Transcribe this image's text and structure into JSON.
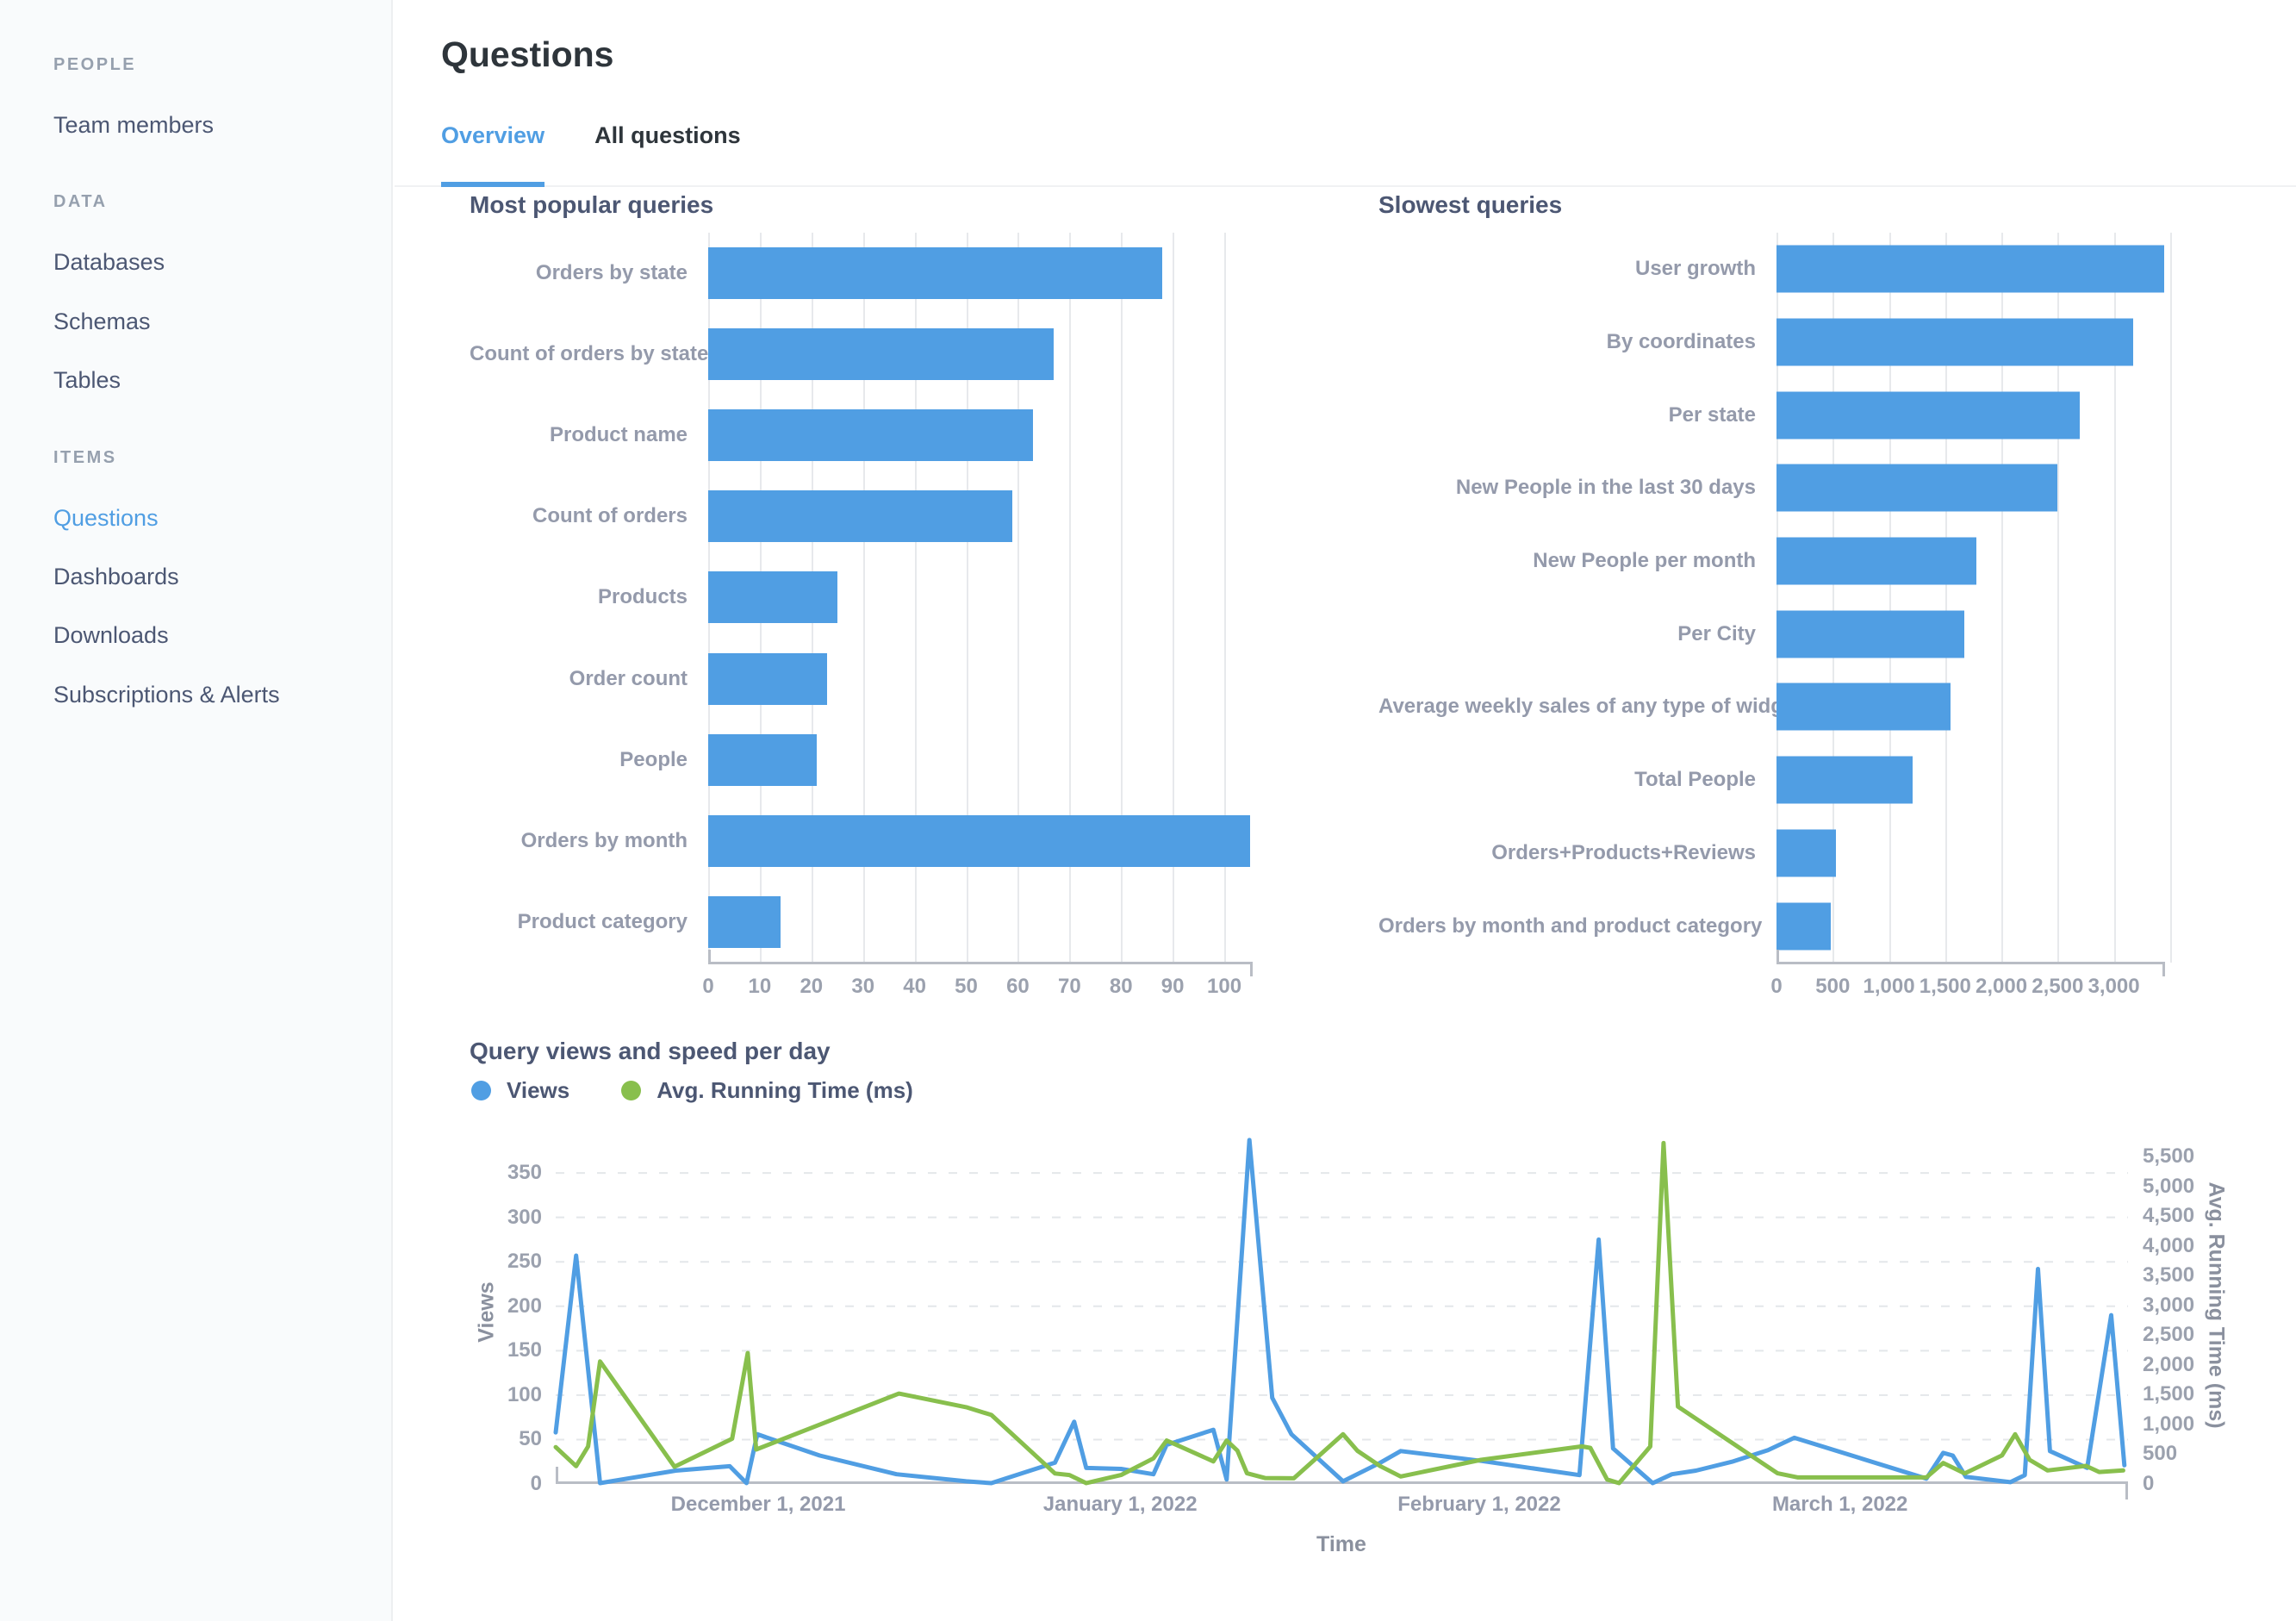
{
  "header": {
    "title": "Questions",
    "tabs": [
      {
        "label": "Overview",
        "active": true
      },
      {
        "label": "All questions",
        "active": false
      }
    ]
  },
  "sidebar": {
    "sections": [
      {
        "heading": "PEOPLE",
        "items": [
          {
            "label": "Team members",
            "active": false
          }
        ]
      },
      {
        "heading": "DATA",
        "items": [
          {
            "label": "Databases",
            "active": false
          },
          {
            "label": "Schemas",
            "active": false
          },
          {
            "label": "Tables",
            "active": false
          }
        ]
      },
      {
        "heading": "ITEMS",
        "items": [
          {
            "label": "Questions",
            "active": true
          },
          {
            "label": "Dashboards",
            "active": false
          },
          {
            "label": "Downloads",
            "active": false
          },
          {
            "label": "Subscriptions & Alerts",
            "active": false
          }
        ]
      }
    ]
  },
  "colors": {
    "accent": "#509EE3",
    "green": "#88BF4D",
    "text_dark": "#2E353B",
    "text_slate": "#4C5773",
    "text_gray": "#949AAB"
  },
  "chart_data": [
    {
      "type": "bar",
      "orientation": "horizontal",
      "title": "Most popular queries",
      "categories": [
        "Orders by state",
        "Count of orders by state",
        "Product name",
        "Count of orders",
        "Products",
        "Order count",
        "People",
        "Orders by month",
        "Product category"
      ],
      "values": [
        88,
        67,
        63,
        59,
        25,
        23,
        21,
        105,
        14
      ],
      "xlim": [
        0,
        105.5
      ],
      "grid": true,
      "ticks": [
        {
          "v": 0,
          "label": "0"
        },
        {
          "v": 10,
          "label": "10"
        },
        {
          "v": 20,
          "label": "20"
        },
        {
          "v": 30,
          "label": "30"
        },
        {
          "v": 40,
          "label": "40"
        },
        {
          "v": 50,
          "label": "50"
        },
        {
          "v": 60,
          "label": "60"
        },
        {
          "v": 70,
          "label": "70"
        },
        {
          "v": 80,
          "label": "80"
        },
        {
          "v": 90,
          "label": "90"
        },
        {
          "v": 100,
          "label": "100"
        }
      ]
    },
    {
      "type": "bar",
      "orientation": "horizontal",
      "title": "Slowest queries",
      "categories": [
        "User growth",
        "By coordinates",
        "Per state",
        "New People in the last 30 days",
        "New People per month",
        "Per City",
        "Average weekly sales of any type of widget",
        "Total People",
        "Orders+Products+Reviews",
        "Orders by month and product category"
      ],
      "values": [
        3450,
        3170,
        2700,
        2500,
        1780,
        1670,
        1550,
        1210,
        530,
        480
      ],
      "xlim": [
        0,
        3455
      ],
      "grid": true,
      "ticks": [
        {
          "v": 0,
          "label": "0"
        },
        {
          "v": 500,
          "label": "500"
        },
        {
          "v": 1000,
          "label": "1,000"
        },
        {
          "v": 1500,
          "label": "1,500"
        },
        {
          "v": 2000,
          "label": "2,000"
        },
        {
          "v": 2500,
          "label": "2,500"
        },
        {
          "v": 3000,
          "label": "3,000"
        },
        {
          "v": 3500,
          "label": ""
        }
      ]
    },
    {
      "type": "line",
      "title": "Query views and speed per day",
      "xlabel": "Time",
      "x_range_days": 131,
      "x_start": "November 14, 2021",
      "legend_position": "top-left",
      "grid": "dashed-horizontal",
      "left_axis": {
        "label": "Views",
        "max": 385,
        "ticks": [
          {
            "v": 0,
            "label": "0"
          },
          {
            "v": 50,
            "label": "50"
          },
          {
            "v": 100,
            "label": "100"
          },
          {
            "v": 150,
            "label": "150"
          },
          {
            "v": 200,
            "label": "200"
          },
          {
            "v": 250,
            "label": "250"
          },
          {
            "v": 300,
            "label": "300"
          },
          {
            "v": 350,
            "label": "350"
          }
        ]
      },
      "right_axis": {
        "label": "Avg. Running Time (ms)",
        "max": 5750,
        "ticks": [
          {
            "v": 0,
            "label": "0"
          },
          {
            "v": 500,
            "label": "500"
          },
          {
            "v": 1000,
            "label": "1,000"
          },
          {
            "v": 1500,
            "label": "1,500"
          },
          {
            "v": 2000,
            "label": "2,000"
          },
          {
            "v": 2500,
            "label": "2,500"
          },
          {
            "v": 3000,
            "label": "3,000"
          },
          {
            "v": 3500,
            "label": "3,500"
          },
          {
            "v": 4000,
            "label": "4,000"
          },
          {
            "v": 4500,
            "label": "4,500"
          },
          {
            "v": 5000,
            "label": "5,000"
          },
          {
            "v": 5500,
            "label": "5,500"
          }
        ]
      },
      "x_ticks": [
        {
          "pos": 0.1288,
          "label": "December 1, 2021"
        },
        {
          "pos": 0.359,
          "label": "January 1, 2022"
        },
        {
          "pos": 0.5874,
          "label": "February 1, 2022"
        },
        {
          "pos": 0.8168,
          "label": "March 1, 2022"
        }
      ],
      "series": [
        {
          "name": "Views",
          "axis": "left",
          "color": "#509EE3",
          "points": [
            [
              0,
              58
            ],
            [
              1.7,
              257
            ],
            [
              3.7,
              1
            ],
            [
              10,
              15
            ],
            [
              14.5,
              20
            ],
            [
              15.9,
              1
            ],
            [
              16.8,
              56
            ],
            [
              22,
              32
            ],
            [
              28.4,
              11
            ],
            [
              34.2,
              3
            ],
            [
              36.3,
              1
            ],
            [
              41.6,
              24
            ],
            [
              43.2,
              70
            ],
            [
              44.2,
              18
            ],
            [
              47.1,
              17
            ],
            [
              49.8,
              11
            ],
            [
              50.9,
              44
            ],
            [
              54.8,
              61
            ],
            [
              55.9,
              5
            ],
            [
              57.8,
              387
            ],
            [
              59.7,
              97
            ],
            [
              61.3,
              56
            ],
            [
              65.6,
              3
            ],
            [
              68.7,
              24
            ],
            [
              70.4,
              37
            ],
            [
              77.1,
              26
            ],
            [
              85.3,
              10
            ],
            [
              86.9,
              275
            ],
            [
              88.1,
              40
            ],
            [
              91.4,
              1
            ],
            [
              93,
              11
            ],
            [
              95,
              15
            ],
            [
              98,
              25
            ],
            [
              101,
              38
            ],
            [
              103.2,
              52
            ],
            [
              114.2,
              6
            ],
            [
              115.6,
              35
            ],
            [
              116.4,
              32
            ],
            [
              117.5,
              8
            ],
            [
              121.2,
              2
            ],
            [
              122.4,
              10
            ],
            [
              123.5,
              242
            ],
            [
              124.5,
              37
            ],
            [
              127.6,
              18
            ],
            [
              129.6,
              190
            ],
            [
              130.7,
              21
            ]
          ]
        },
        {
          "name": "Avg. Running Time (ms)",
          "axis": "right",
          "color": "#88BF4D",
          "points": [
            [
              0,
              620
            ],
            [
              1.7,
              300
            ],
            [
              2.7,
              630
            ],
            [
              3.7,
              2060
            ],
            [
              9.9,
              290
            ],
            [
              14.7,
              760
            ],
            [
              16,
              2200
            ],
            [
              16.7,
              580
            ],
            [
              28.6,
              1520
            ],
            [
              34.2,
              1290
            ],
            [
              36.3,
              1160
            ],
            [
              41.6,
              177
            ],
            [
              42.8,
              150
            ],
            [
              44.2,
              15
            ],
            [
              47.1,
              150
            ],
            [
              49.8,
              430
            ],
            [
              50.9,
              730
            ],
            [
              51.7,
              660
            ],
            [
              54.8,
              380
            ],
            [
              55.9,
              730
            ],
            [
              56.8,
              560
            ],
            [
              57.6,
              180
            ],
            [
              59.1,
              100
            ],
            [
              61.5,
              95
            ],
            [
              65.6,
              835
            ],
            [
              66.8,
              557
            ],
            [
              68.7,
              300
            ],
            [
              70.4,
              126
            ],
            [
              77.1,
              405
            ],
            [
              85.5,
              632
            ],
            [
              86.2,
              607
            ],
            [
              87.6,
              76
            ],
            [
              88.6,
              15
            ],
            [
              91.2,
              630
            ],
            [
              92.3,
              5730
            ],
            [
              93.5,
              1300
            ],
            [
              101.8,
              180
            ],
            [
              103.5,
              110
            ],
            [
              114.2,
              110
            ],
            [
              115.6,
              354
            ],
            [
              117.4,
              177
            ],
            [
              120.5,
              480
            ],
            [
              121.6,
              835
            ],
            [
              122.8,
              405
            ],
            [
              124.3,
              228
            ],
            [
              127.5,
              304
            ],
            [
              128.6,
              202
            ],
            [
              130.6,
              228
            ]
          ]
        }
      ]
    }
  ]
}
